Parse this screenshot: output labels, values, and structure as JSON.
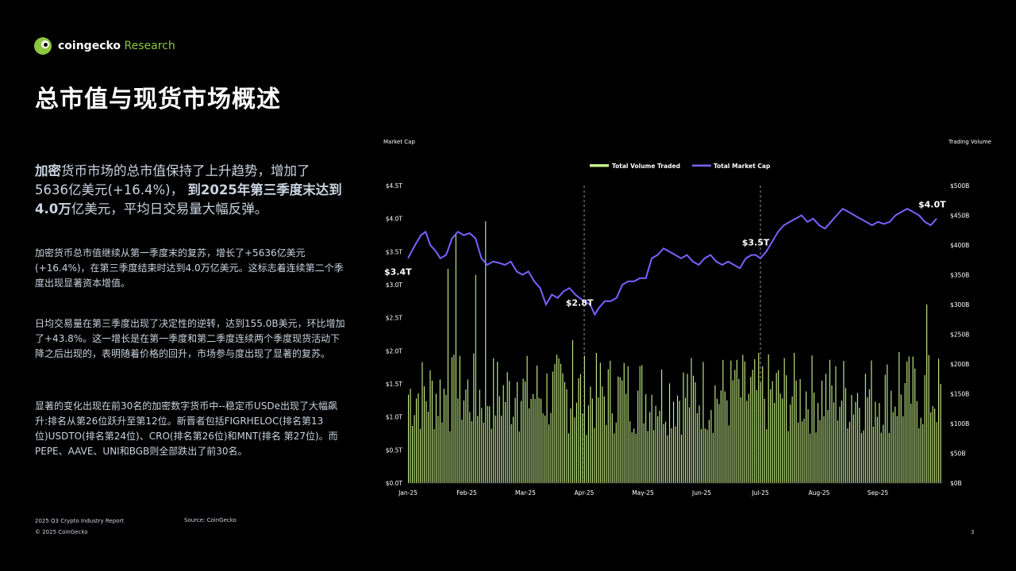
{
  "brand": {
    "name": "coingecko",
    "suffix": " Research"
  },
  "title": "总市值与现货市场概述",
  "lead": {
    "b1": "加密",
    "t1": "货币市场的总市值保持了上升趋势，增加了",
    "t2": "5636亿美元(+16.4%)，",
    "b2": "到2025年第三季度末达到",
    "b3": "4.0万",
    "t3": "亿美元，平均日交易量大幅反弹。"
  },
  "paragraphs": [
    "加密货币总市值继续从第一季度末的复苏，增长了+5636亿美元(+16.4%)，在第三季度结束时达到4.0万亿美元。这标志着连续第二个季度出现显著资本增值。",
    "日均交易量在第三季度出现了决定性的逆转，达到155.0B美元，环比增加了+43.8%。这一增长是在第一季度和第二季度连续两个季度现货活动下降之后出现的，表明随着价格的回升，市场参与度出现了显著的复苏。",
    "显著的变化出现在前30名的加密数字货币中--稳定币USDe出现了大幅飙升:排名从第26位跃升至第12位。新晋者包括FIGRHELOC(排名第13位)USDTO(排名第24位)、CRO(排名第26位)和MNT(排名 第27位)。而PEPE、AAVE、UNI和BGB则全部跌出了前30名。"
  ],
  "footer": {
    "report": "2025 Q3 Crypto Industry Report",
    "copyright": "© 2025 CoinGecko",
    "source": "Source: CoinGecko",
    "page": "3"
  },
  "colors": {
    "accent_green": "#8dc63f",
    "volume_bar": "#c6f08a",
    "market_cap_line": "#7b61ff"
  },
  "chart_data": {
    "type": "bar+line",
    "left_axis_title": "Market Cap",
    "right_axis_title": "Trading Volume",
    "left_ylim": [
      0,
      4.5
    ],
    "right_ylim": [
      0,
      500
    ],
    "left_ticks": [
      "$0.0T",
      "$0.5T",
      "$1.0T",
      "$1.5T",
      "$2.0T",
      "$2.5T",
      "$3.0T",
      "$3.5T",
      "$4.0T",
      "$4.5T"
    ],
    "right_ticks": [
      "$0B",
      "$50B",
      "$100B",
      "$150B",
      "$200B",
      "$250B",
      "$300B",
      "$350B",
      "$400B",
      "$450B",
      "$500B"
    ],
    "x_ticks": [
      "Jan-25",
      "Feb-25",
      "Mar-25",
      "Apr-25",
      "May-25",
      "Jun-25",
      "Jul-25",
      "Aug-25",
      "Sep-25"
    ],
    "legend": [
      "Total Volume Traded",
      "Total Market Cap"
    ],
    "legend_position": "top",
    "reference_lines": [
      "Apr-25",
      "Jul-25"
    ],
    "annotations": [
      {
        "label": "$3.4T",
        "month": 0.0,
        "value": 3.4
      },
      {
        "label": "$2.8T",
        "month": 2.92,
        "value": 2.8
      },
      {
        "label": "$3.5T",
        "month": 5.92,
        "value": 3.5
      },
      {
        "label": "$4.0T",
        "month": 8.95,
        "value": 4.0
      }
    ],
    "market_cap_points": [
      [
        0.0,
        3.4
      ],
      [
        0.12,
        3.6
      ],
      [
        0.22,
        3.75
      ],
      [
        0.3,
        3.8
      ],
      [
        0.38,
        3.6
      ],
      [
        0.48,
        3.5
      ],
      [
        0.55,
        3.4
      ],
      [
        0.65,
        3.45
      ],
      [
        0.75,
        3.7
      ],
      [
        0.85,
        3.8
      ],
      [
        0.95,
        3.75
      ],
      [
        1.05,
        3.78
      ],
      [
        1.15,
        3.7
      ],
      [
        1.25,
        3.4
      ],
      [
        1.35,
        3.3
      ],
      [
        1.45,
        3.35
      ],
      [
        1.55,
        3.33
      ],
      [
        1.65,
        3.3
      ],
      [
        1.75,
        3.35
      ],
      [
        1.85,
        3.2
      ],
      [
        1.95,
        3.15
      ],
      [
        2.05,
        3.2
      ],
      [
        2.15,
        3.05
      ],
      [
        2.25,
        2.95
      ],
      [
        2.35,
        2.7
      ],
      [
        2.45,
        2.85
      ],
      [
        2.55,
        2.8
      ],
      [
        2.65,
        2.9
      ],
      [
        2.75,
        2.95
      ],
      [
        2.85,
        2.85
      ],
      [
        2.92,
        2.8
      ],
      [
        3.0,
        2.75
      ],
      [
        3.1,
        2.7
      ],
      [
        3.18,
        2.55
      ],
      [
        3.25,
        2.65
      ],
      [
        3.35,
        2.75
      ],
      [
        3.45,
        2.75
      ],
      [
        3.55,
        2.8
      ],
      [
        3.65,
        3.0
      ],
      [
        3.75,
        3.05
      ],
      [
        3.85,
        3.05
      ],
      [
        3.95,
        3.1
      ],
      [
        4.05,
        3.1
      ],
      [
        4.15,
        3.4
      ],
      [
        4.25,
        3.45
      ],
      [
        4.35,
        3.55
      ],
      [
        4.45,
        3.5
      ],
      [
        4.55,
        3.45
      ],
      [
        4.65,
        3.4
      ],
      [
        4.75,
        3.45
      ],
      [
        4.85,
        3.35
      ],
      [
        4.95,
        3.3
      ],
      [
        5.05,
        3.4
      ],
      [
        5.15,
        3.45
      ],
      [
        5.25,
        3.35
      ],
      [
        5.35,
        3.3
      ],
      [
        5.45,
        3.35
      ],
      [
        5.55,
        3.3
      ],
      [
        5.65,
        3.25
      ],
      [
        5.75,
        3.4
      ],
      [
        5.85,
        3.45
      ],
      [
        5.92,
        3.45
      ],
      [
        6.0,
        3.4
      ],
      [
        6.1,
        3.5
      ],
      [
        6.2,
        3.65
      ],
      [
        6.3,
        3.8
      ],
      [
        6.4,
        3.9
      ],
      [
        6.5,
        3.95
      ],
      [
        6.6,
        4.0
      ],
      [
        6.7,
        4.05
      ],
      [
        6.8,
        3.95
      ],
      [
        6.9,
        4.0
      ],
      [
        7.0,
        3.9
      ],
      [
        7.1,
        3.85
      ],
      [
        7.2,
        3.95
      ],
      [
        7.3,
        4.05
      ],
      [
        7.4,
        4.15
      ],
      [
        7.5,
        4.1
      ],
      [
        7.6,
        4.05
      ],
      [
        7.7,
        4.0
      ],
      [
        7.8,
        3.95
      ],
      [
        7.9,
        3.9
      ],
      [
        8.0,
        3.95
      ],
      [
        8.1,
        3.92
      ],
      [
        8.2,
        3.95
      ],
      [
        8.3,
        4.05
      ],
      [
        8.4,
        4.1
      ],
      [
        8.5,
        4.15
      ],
      [
        8.6,
        4.1
      ],
      [
        8.7,
        4.05
      ],
      [
        8.8,
        3.95
      ],
      [
        8.9,
        3.9
      ],
      [
        8.95,
        3.95
      ],
      [
        9.0,
        4.0
      ]
    ],
    "volume_stats": {
      "min_b": 50,
      "max_b": 440,
      "typical_range_b": [
        80,
        220
      ]
    }
  }
}
